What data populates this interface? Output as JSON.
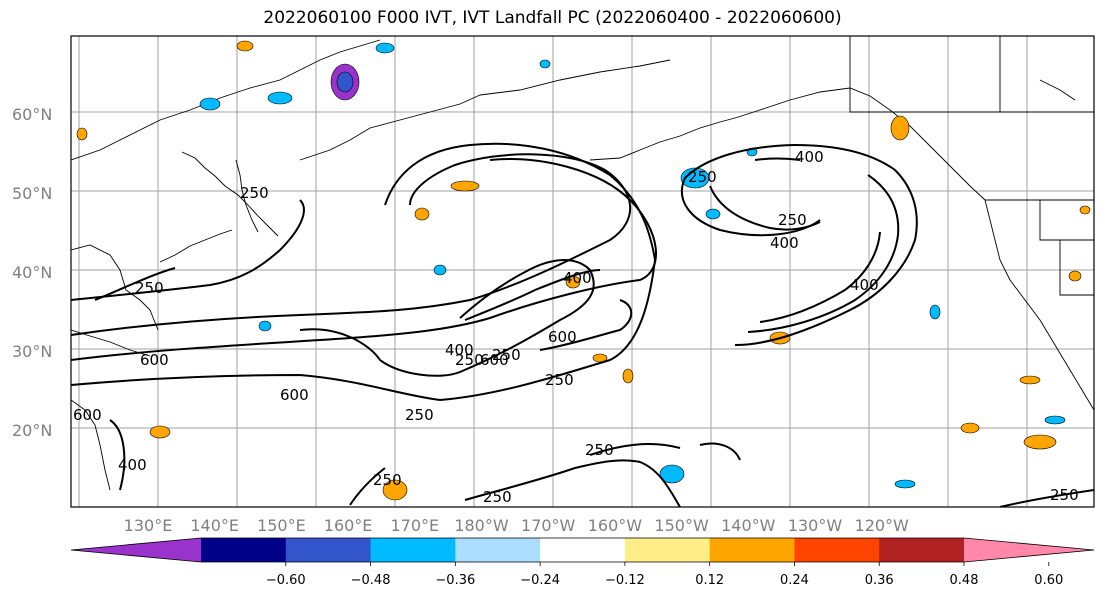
{
  "title": "2022060100 F000 IVT, IVT Landfall PC (2022060400 - 2022060600)",
  "latitude_labels": [
    "20°N",
    "30°N",
    "40°N",
    "50°N",
    "60°N"
  ],
  "longitude_labels": [
    "130°E",
    "140°E",
    "150°E",
    "160°E",
    "170°E",
    "180°W",
    "170°W",
    "160°W",
    "150°W",
    "140°W",
    "130°W",
    "120°W"
  ],
  "contour_labels": [
    "250",
    "400",
    "600",
    "250",
    "250",
    "600",
    "400",
    "250",
    "600",
    "400",
    "600",
    "250",
    "250",
    "250",
    "250",
    "250",
    "400",
    "400",
    "250",
    "250",
    "400",
    "600",
    "250"
  ],
  "colorbar": {
    "extend": "both",
    "colors": [
      "#9933cc",
      "#000088",
      "#3355cc",
      "#00bbff",
      "#aaddff",
      "#ffffff",
      "#ffee88",
      "#ffa500",
      "#ff4400",
      "#b22222",
      "#ff88aa"
    ],
    "tick_labels": [
      "−0.60",
      "−0.48",
      "−0.36",
      "−0.24",
      "−0.12",
      "0.12",
      "0.24",
      "0.36",
      "0.48",
      "0.60"
    ]
  }
}
